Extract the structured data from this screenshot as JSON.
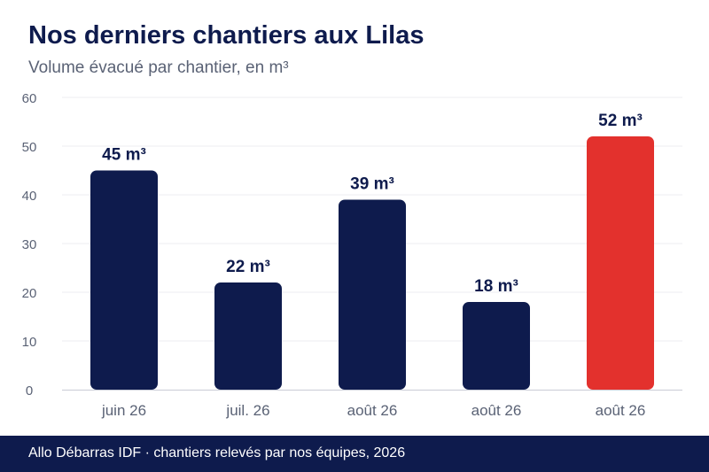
{
  "header": {
    "title": "Nos derniers chantiers aux Lilas",
    "subtitle": "Volume évacué par chantier, en m³"
  },
  "footer": {
    "text": "Allo Débarras IDF · chantiers relevés par nos équipes, 2026"
  },
  "colors": {
    "bar": "#0e1b4d",
    "highlight": "#e3312d",
    "grid": "#eceef2",
    "axis": "#c9ccd6",
    "tick_text": "#5a6275",
    "label_text": "#0e1b4d"
  },
  "chart_data": {
    "type": "bar",
    "title": "Nos derniers chantiers aux Lilas",
    "subtitle": "Volume évacué par chantier, en m³",
    "categories": [
      "juin 26",
      "juil. 26",
      "août 26",
      "août 26",
      "août 26"
    ],
    "values": [
      45,
      22,
      39,
      18,
      52
    ],
    "data_labels": [
      "45 m³",
      "22 m³",
      "39 m³",
      "18 m³",
      "52 m³"
    ],
    "highlight_index": 4,
    "ylim": [
      0,
      60
    ],
    "yticks": [
      0,
      10,
      20,
      30,
      40,
      50,
      60
    ],
    "grid": true,
    "legend": "none"
  }
}
